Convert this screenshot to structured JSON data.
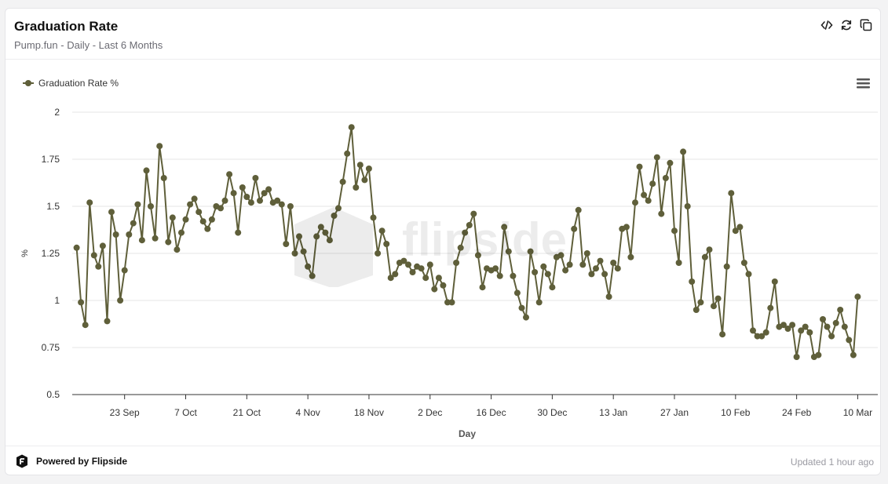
{
  "header": {
    "title": "Graduation Rate",
    "subtitle": "Pump.fun - Daily - Last 6 Months"
  },
  "tools": {
    "embed_icon": "code-icon",
    "refresh_icon": "refresh-icon",
    "copy_icon": "copy-icon"
  },
  "footer": {
    "brand": "Powered by Flipside",
    "updated": "Updated 1 hour ago"
  },
  "watermark": "flipside",
  "chart_data": {
    "type": "line",
    "xlabel": "Day",
    "ylabel": "%",
    "ylim": [
      0.5,
      2
    ],
    "yticks": [
      "0.5",
      "0.75",
      "1",
      "1.25",
      "1.5",
      "1.75",
      "2"
    ],
    "x_start": "2024-09-12",
    "xticks": [
      {
        "label": "23 Sep",
        "day": 11
      },
      {
        "label": "7 Oct",
        "day": 25
      },
      {
        "label": "21 Oct",
        "day": 39
      },
      {
        "label": "4 Nov",
        "day": 53
      },
      {
        "label": "18 Nov",
        "day": 67
      },
      {
        "label": "2 Dec",
        "day": 81
      },
      {
        "label": "16 Dec",
        "day": 95
      },
      {
        "label": "30 Dec",
        "day": 109
      },
      {
        "label": "13 Jan",
        "day": 123
      },
      {
        "label": "27 Jan",
        "day": 137
      },
      {
        "label": "10 Feb",
        "day": 151
      },
      {
        "label": "24 Feb",
        "day": 165
      },
      {
        "label": "10 Mar",
        "day": 179
      }
    ],
    "color": "#5f5f3a",
    "grid": true,
    "legend": "top-left",
    "series": [
      {
        "name": "Graduation Rate %",
        "values": [
          1.28,
          0.99,
          0.87,
          1.52,
          1.24,
          1.18,
          1.29,
          0.89,
          1.47,
          1.35,
          1.0,
          1.16,
          1.35,
          1.41,
          1.51,
          1.32,
          1.69,
          1.5,
          1.33,
          1.82,
          1.65,
          1.31,
          1.44,
          1.27,
          1.36,
          1.43,
          1.51,
          1.54,
          1.47,
          1.42,
          1.38,
          1.43,
          1.5,
          1.49,
          1.53,
          1.67,
          1.57,
          1.36,
          1.6,
          1.55,
          1.52,
          1.65,
          1.53,
          1.57,
          1.59,
          1.52,
          1.53,
          1.51,
          1.3,
          1.5,
          1.25,
          1.34,
          1.26,
          1.18,
          1.13,
          1.34,
          1.39,
          1.36,
          1.32,
          1.45,
          1.49,
          1.63,
          1.78,
          1.92,
          1.6,
          1.72,
          1.64,
          1.7,
          1.44,
          1.25,
          1.37,
          1.3,
          1.12,
          1.14,
          1.2,
          1.21,
          1.19,
          1.15,
          1.18,
          1.17,
          1.12,
          1.19,
          1.06,
          1.12,
          1.08,
          0.99,
          0.99,
          1.2,
          1.28,
          1.36,
          1.4,
          1.46,
          1.24,
          1.07,
          1.17,
          1.16,
          1.17,
          1.13,
          1.39,
          1.26,
          1.13,
          1.04,
          0.96,
          0.91,
          1.26,
          1.15,
          0.99,
          1.18,
          1.14,
          1.07,
          1.23,
          1.24,
          1.16,
          1.19,
          1.38,
          1.48,
          1.19,
          1.25,
          1.14,
          1.17,
          1.21,
          1.14,
          1.02,
          1.2,
          1.17,
          1.38,
          1.39,
          1.23,
          1.52,
          1.71,
          1.56,
          1.53,
          1.62,
          1.76,
          1.46,
          1.65,
          1.73,
          1.37,
          1.2,
          1.79,
          1.5,
          1.1,
          0.95,
          0.99,
          1.23,
          1.27,
          0.97,
          1.01,
          0.82,
          1.18,
          1.57,
          1.37,
          1.39,
          1.2,
          1.14,
          0.84,
          0.81,
          0.81,
          0.83,
          0.96,
          1.1,
          0.86,
          0.87,
          0.85,
          0.87,
          0.7,
          0.84,
          0.86,
          0.83,
          0.7,
          0.71,
          0.9,
          0.86,
          0.81,
          0.88,
          0.95,
          0.86,
          0.79,
          0.71,
          1.02
        ]
      }
    ]
  }
}
